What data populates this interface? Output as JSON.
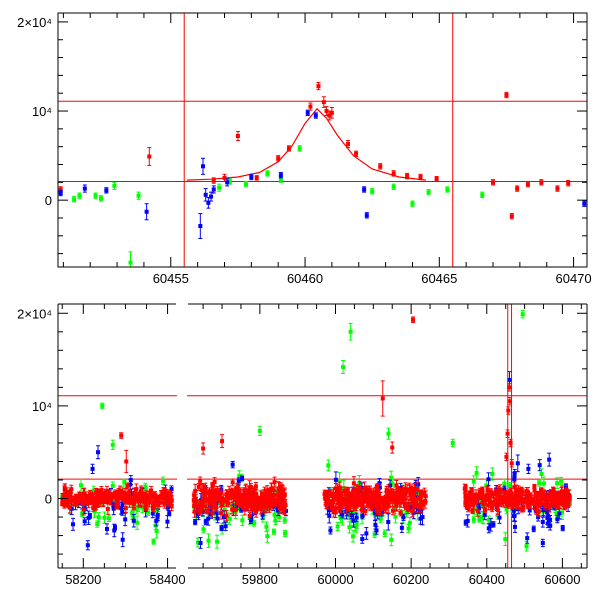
{
  "colors": {
    "red": "#ff0000",
    "green": "#00ff00",
    "blue": "#0000ff",
    "axes": "#000000"
  },
  "chart_data": [
    {
      "type": "scatter",
      "panel": "top",
      "xlim": [
        60450.8,
        60470.5
      ],
      "ylim": [
        -7500,
        21000
      ],
      "x_ticks": [
        60455,
        60460,
        60465,
        60470
      ],
      "x_tick_labels": [
        "60455",
        "60460",
        "60465",
        "60470"
      ],
      "y_ticks": [
        0,
        10000,
        20000
      ],
      "y_tick_labels": [
        "0",
        "10⁴",
        "2×10⁴"
      ],
      "hlines": [
        11100,
        2100
      ],
      "vlines": [
        60455.5,
        60465.5
      ],
      "model_curve": {
        "color": "red",
        "baseline": 2050,
        "peak_x": 60460.45,
        "peak_y": 10250,
        "points": [
          [
            60455.6,
            2250
          ],
          [
            60456.5,
            2350
          ],
          [
            60457.5,
            2600
          ],
          [
            60458.3,
            3100
          ],
          [
            60459.0,
            4300
          ],
          [
            60459.5,
            6000
          ],
          [
            60460.0,
            8600
          ],
          [
            60460.45,
            10250
          ],
          [
            60460.8,
            9200
          ],
          [
            60461.2,
            7300
          ],
          [
            60461.8,
            5000
          ],
          [
            60462.5,
            3500
          ],
          [
            60463.5,
            2600
          ],
          [
            60464.5,
            2250
          ]
        ]
      },
      "series": [
        {
          "color": "red",
          "points": [
            [
              60450.9,
              1200,
              300
            ],
            [
              60454.2,
              4900,
              1000
            ],
            [
              60456.6,
              2200,
              300
            ],
            [
              60457.0,
              2500,
              400
            ],
            [
              60457.5,
              7200,
              500
            ],
            [
              60458.2,
              2500,
              250
            ],
            [
              60459.0,
              4700,
              300
            ],
            [
              60459.4,
              5800,
              300
            ],
            [
              60460.2,
              10500,
              400
            ],
            [
              60460.5,
              12800,
              400
            ],
            [
              60460.7,
              11000,
              600
            ],
            [
              60460.8,
              10000,
              500
            ],
            [
              60460.9,
              9500,
              500
            ],
            [
              60461.0,
              9800,
              600
            ],
            [
              60461.6,
              6300,
              400
            ],
            [
              60461.9,
              5200,
              300
            ],
            [
              60462.8,
              3800,
              300
            ],
            [
              60463.3,
              3000,
              300
            ],
            [
              60463.8,
              2700,
              300
            ],
            [
              60464.3,
              2600,
              300
            ],
            [
              60464.9,
              2400,
              250
            ],
            [
              60467.0,
              2000,
              300
            ],
            [
              60467.5,
              11800,
              300
            ],
            [
              60467.7,
              -1800,
              300
            ],
            [
              60467.9,
              1300,
              300
            ],
            [
              60468.3,
              1800,
              300
            ],
            [
              60468.8,
              2000,
              300
            ],
            [
              60469.4,
              1300,
              300
            ],
            [
              60469.8,
              1900,
              300
            ]
          ]
        },
        {
          "color": "green",
          "points": [
            [
              60451.4,
              100,
              300
            ],
            [
              60451.6,
              500,
              300
            ],
            [
              60452.2,
              500,
              300
            ],
            [
              60452.4,
              200,
              300
            ],
            [
              60452.9,
              1600,
              400
            ],
            [
              60453.5,
              -7000,
              1200
            ],
            [
              60453.8,
              500,
              400
            ],
            [
              60456.8,
              1400,
              400
            ],
            [
              60457.2,
              2100,
              300
            ],
            [
              60457.8,
              1800,
              300
            ],
            [
              60458.6,
              3000,
              300
            ],
            [
              60459.1,
              2300,
              300
            ],
            [
              60459.8,
              5800,
              300
            ],
            [
              60462.5,
              1000,
              300
            ],
            [
              60463.3,
              1500,
              300
            ],
            [
              60464.0,
              -400,
              300
            ],
            [
              60464.6,
              900,
              300
            ],
            [
              60465.3,
              1200,
              300
            ],
            [
              60466.6,
              600,
              300
            ]
          ]
        },
        {
          "color": "blue",
          "points": [
            [
              60450.9,
              800,
              300
            ],
            [
              60451.8,
              1300,
              400
            ],
            [
              60452.6,
              1100,
              300
            ],
            [
              60454.1,
              -1300,
              900
            ],
            [
              60456.1,
              -2900,
              1400
            ],
            [
              60456.2,
              3800,
              900
            ],
            [
              60456.3,
              600,
              700
            ],
            [
              60456.4,
              -300,
              600
            ],
            [
              60456.5,
              400,
              500
            ],
            [
              60456.6,
              1200,
              400
            ],
            [
              60457.1,
              2000,
              400
            ],
            [
              60458.0,
              2600,
              300
            ],
            [
              60459.1,
              2800,
              300
            ],
            [
              60460.1,
              9800,
              300
            ],
            [
              60460.4,
              9500,
              300
            ],
            [
              60462.2,
              1200,
              300
            ],
            [
              60462.3,
              -1700,
              300
            ],
            [
              60470.4,
              -400,
              300
            ]
          ]
        }
      ]
    },
    {
      "type": "scatter",
      "panel": "bottom",
      "broken_axis": true,
      "segments": [
        {
          "xlim": [
            58140,
            58420
          ],
          "x_ticks": [
            58200,
            58400
          ],
          "x_tick_labels": [
            "58200",
            "58400"
          ]
        },
        {
          "xlim": [
            59610,
            60665
          ],
          "x_ticks": [
            59800,
            60000,
            60200,
            60400,
            60600
          ],
          "x_tick_labels": [
            "59800",
            "60000",
            "60200",
            "60400",
            "60600"
          ]
        }
      ],
      "ylim": [
        -7500,
        21000
      ],
      "y_ticks": [
        0,
        10000,
        20000
      ],
      "y_tick_labels": [
        "0",
        "10⁴",
        "2×10⁴"
      ],
      "hlines": [
        11100,
        2100
      ],
      "vlines": [
        60455.5,
        60465.5
      ],
      "seasons": [
        {
          "range": [
            58150,
            58410
          ],
          "color": "red",
          "n": 230,
          "sigma": 900,
          "err": 400,
          "seed": 11
        },
        {
          "range": [
            58150,
            58410
          ],
          "color": "green",
          "n": 55,
          "sigma": 2200,
          "err": 500,
          "seed": 12
        },
        {
          "range": [
            58150,
            58410
          ],
          "color": "blue",
          "n": 45,
          "sigma": 2400,
          "err": 500,
          "seed": 13
        },
        {
          "range": [
            59625,
            59870
          ],
          "color": "red",
          "n": 240,
          "sigma": 1400,
          "err": 500,
          "seed": 21
        },
        {
          "range": [
            59625,
            59870
          ],
          "color": "green",
          "n": 60,
          "sigma": 2600,
          "err": 500,
          "seed": 22
        },
        {
          "range": [
            59625,
            59870
          ],
          "color": "blue",
          "n": 55,
          "sigma": 2500,
          "err": 500,
          "seed": 23
        },
        {
          "range": [
            59970,
            60240
          ],
          "color": "red",
          "n": 240,
          "sigma": 1300,
          "err": 500,
          "seed": 31
        },
        {
          "range": [
            59970,
            60240
          ],
          "color": "green",
          "n": 65,
          "sigma": 2800,
          "err": 600,
          "seed": 32
        },
        {
          "range": [
            59970,
            60240
          ],
          "color": "blue",
          "n": 60,
          "sigma": 2700,
          "err": 600,
          "seed": 33
        },
        {
          "range": [
            60340,
            60620
          ],
          "color": "red",
          "n": 240,
          "sigma": 1100,
          "err": 400,
          "seed": 41
        },
        {
          "range": [
            60340,
            60620
          ],
          "color": "green",
          "n": 55,
          "sigma": 2600,
          "err": 500,
          "seed": 42
        },
        {
          "range": [
            60340,
            60620
          ],
          "color": "blue",
          "n": 60,
          "sigma": 2600,
          "err": 500,
          "seed": 43
        }
      ],
      "outliers": [
        {
          "color": "green",
          "points": [
            [
              58245,
              10000,
              300
            ],
            [
              58270,
              5800,
              500
            ],
            [
              60040,
              18000,
              900
            ],
            [
              60020,
              14200,
              700
            ],
            [
              60495,
              19900,
              400
            ],
            [
              59800,
              7300,
              500
            ],
            [
              60140,
              7000,
              600
            ],
            [
              60310,
              6000,
              400
            ]
          ]
        },
        {
          "color": "red",
          "points": [
            [
              58290,
              6800,
              300
            ],
            [
              58302,
              4000,
              1200
            ],
            [
              60125,
              10800,
              1900
            ],
            [
              60205,
              19300,
              300
            ],
            [
              60150,
              5500,
              600
            ],
            [
              59650,
              5400,
              600
            ],
            [
              59700,
              6200,
              700
            ]
          ]
        },
        {
          "color": "blue",
          "points": [
            [
              58235,
              5000,
              700
            ],
            [
              58222,
              3200,
              500
            ],
            [
              60565,
              4200,
              700
            ],
            [
              60540,
              3600,
              600
            ],
            [
              60510,
              3200,
              500
            ],
            [
              60482,
              3800,
              900
            ],
            [
              60460,
              12800,
              900
            ]
          ]
        }
      ]
    }
  ]
}
